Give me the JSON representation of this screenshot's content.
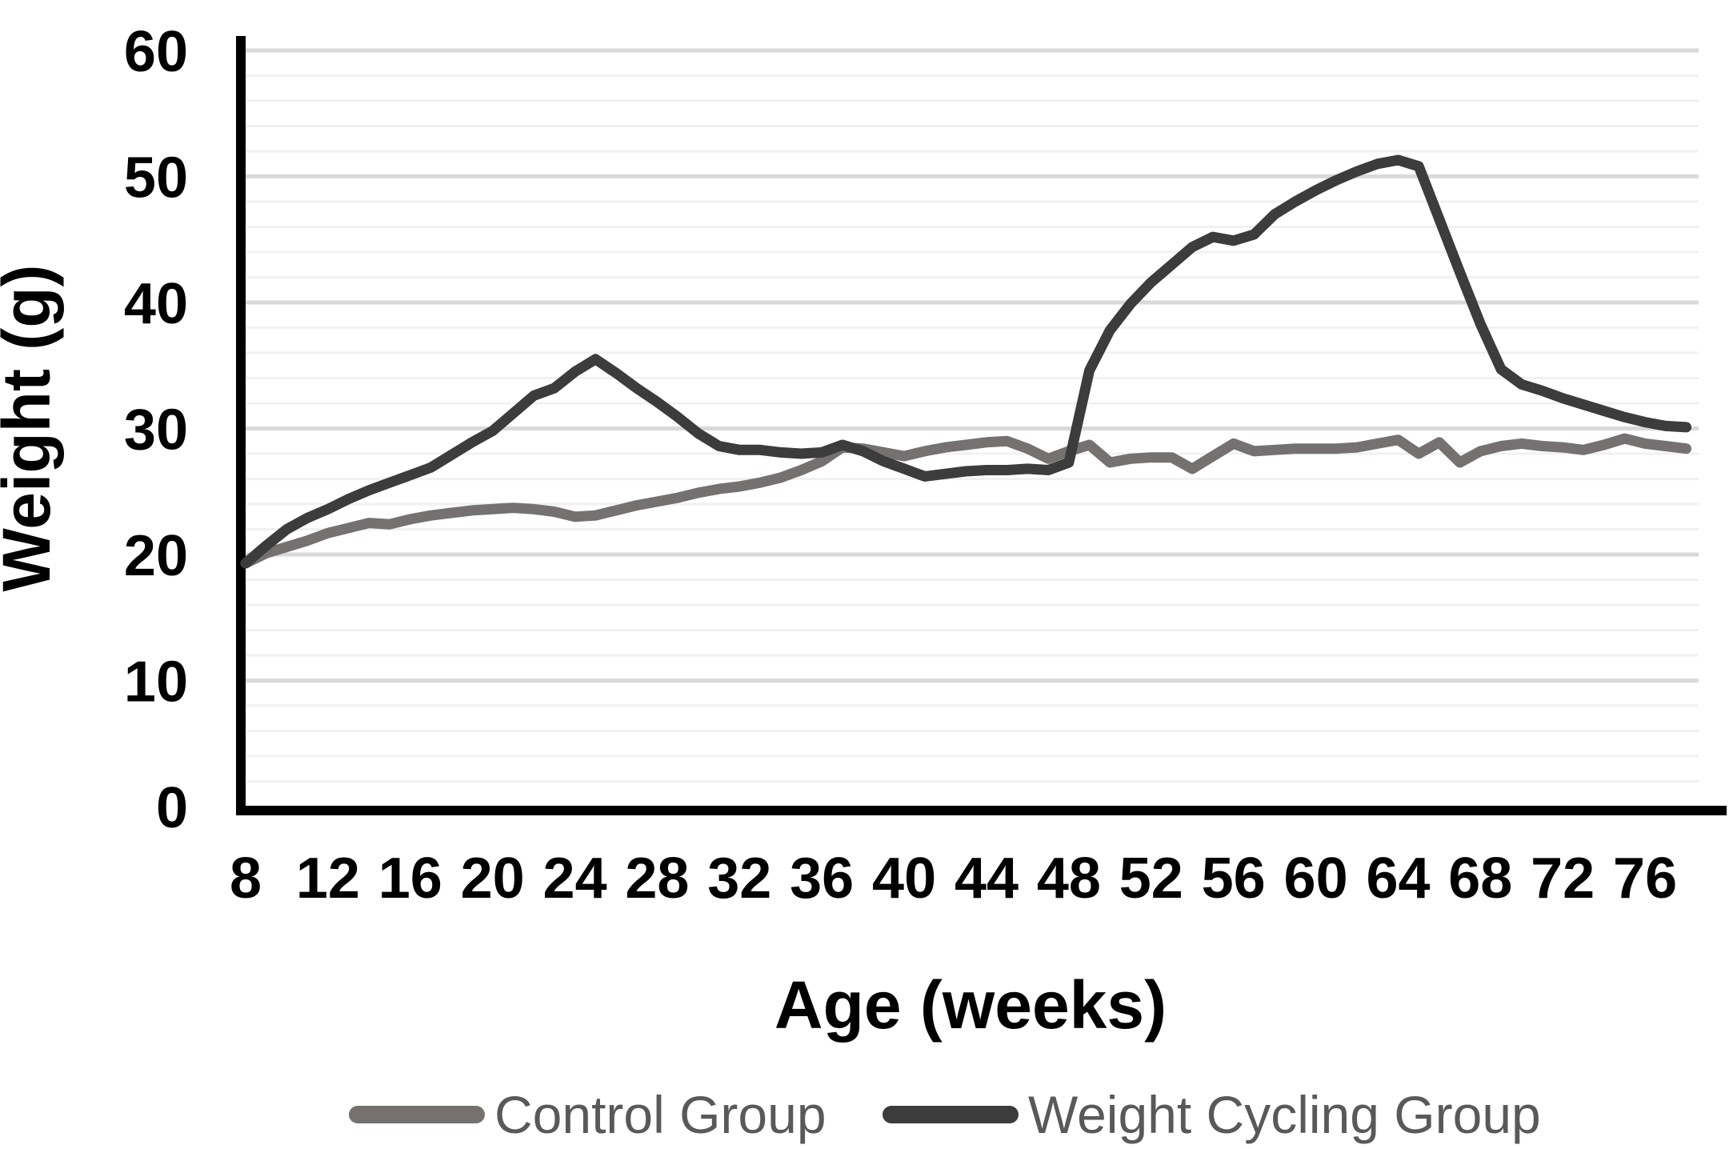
{
  "chart_data": {
    "type": "line",
    "title": "",
    "xlabel": "Age (weeks)",
    "ylabel": "Weight (g)",
    "x_ticks": [
      8,
      12,
      16,
      20,
      24,
      28,
      32,
      36,
      40,
      44,
      48,
      52,
      56,
      60,
      64,
      68,
      72,
      76
    ],
    "y_ticks": [
      0,
      10,
      20,
      30,
      40,
      50,
      60
    ],
    "xlim": [
      8,
      78.6
    ],
    "ylim": [
      0,
      60
    ],
    "grid": "horizontal",
    "gridlines": {
      "minor_step": 2,
      "major_step": 10,
      "minor_color": "#F1F1F1",
      "major_color": "#D9D9D9"
    },
    "legend_position": "bottom",
    "axis_color": "#000000",
    "tick_label_color": "#000000",
    "legend_text_color": "#595959",
    "x": [
      8,
      9,
      10,
      11,
      12,
      13,
      14,
      15,
      16,
      17,
      18,
      19,
      20,
      21,
      22,
      23,
      24,
      25,
      26,
      27,
      28,
      29,
      30,
      31,
      32,
      33,
      34,
      35,
      36,
      37,
      38,
      39,
      40,
      41,
      42,
      43,
      44,
      45,
      46,
      47,
      48,
      49,
      50,
      51,
      52,
      53,
      54,
      55,
      56,
      57,
      58,
      59,
      60,
      61,
      62,
      63,
      64,
      65,
      66,
      67,
      68,
      69,
      70,
      71,
      72,
      73,
      74,
      75,
      76,
      77,
      78
    ],
    "series": [
      {
        "name": "Control Group",
        "color": "#767171",
        "values": [
          19.3,
          20.1,
          20.6,
          21.1,
          21.7,
          22.1,
          22.5,
          22.4,
          22.8,
          23.1,
          23.3,
          23.5,
          23.6,
          23.7,
          23.6,
          23.4,
          23.0,
          23.1,
          23.5,
          23.9,
          24.2,
          24.5,
          24.9,
          25.2,
          25.4,
          25.7,
          26.1,
          26.7,
          27.4,
          28.5,
          28.4,
          28.1,
          27.8,
          28.2,
          28.5,
          28.7,
          28.9,
          29.0,
          28.4,
          27.6,
          28.2,
          28.7,
          27.3,
          27.6,
          27.7,
          27.7,
          26.8,
          27.8,
          28.8,
          28.2,
          28.3,
          28.4,
          28.4,
          28.4,
          28.5,
          28.8,
          29.1,
          28.0,
          28.9,
          27.3,
          28.2,
          28.6,
          28.8,
          28.6,
          28.5,
          28.3,
          28.7,
          29.2,
          28.8,
          28.6,
          28.4
        ]
      },
      {
        "name": "Weight Cycling Group",
        "color": "#3C3C3C",
        "values": [
          19.3,
          20.7,
          22.0,
          22.9,
          23.6,
          24.4,
          25.1,
          25.7,
          26.3,
          26.9,
          27.9,
          28.9,
          29.8,
          31.2,
          32.6,
          33.2,
          34.5,
          35.5,
          34.4,
          33.2,
          32.1,
          30.9,
          29.6,
          28.6,
          28.3,
          28.3,
          28.1,
          28.0,
          28.1,
          28.7,
          28.2,
          27.4,
          26.8,
          26.2,
          26.4,
          26.6,
          26.7,
          26.7,
          26.8,
          26.7,
          27.3,
          34.6,
          37.8,
          39.9,
          41.6,
          43.0,
          44.4,
          45.2,
          44.9,
          45.4,
          47.0,
          48.0,
          48.9,
          49.7,
          50.4,
          51.0,
          51.3,
          50.8,
          46.6,
          42.4,
          38.3,
          34.7,
          33.5,
          33.0,
          32.4,
          31.9,
          31.4,
          30.9,
          30.5,
          30.2,
          30.1
        ]
      }
    ]
  }
}
